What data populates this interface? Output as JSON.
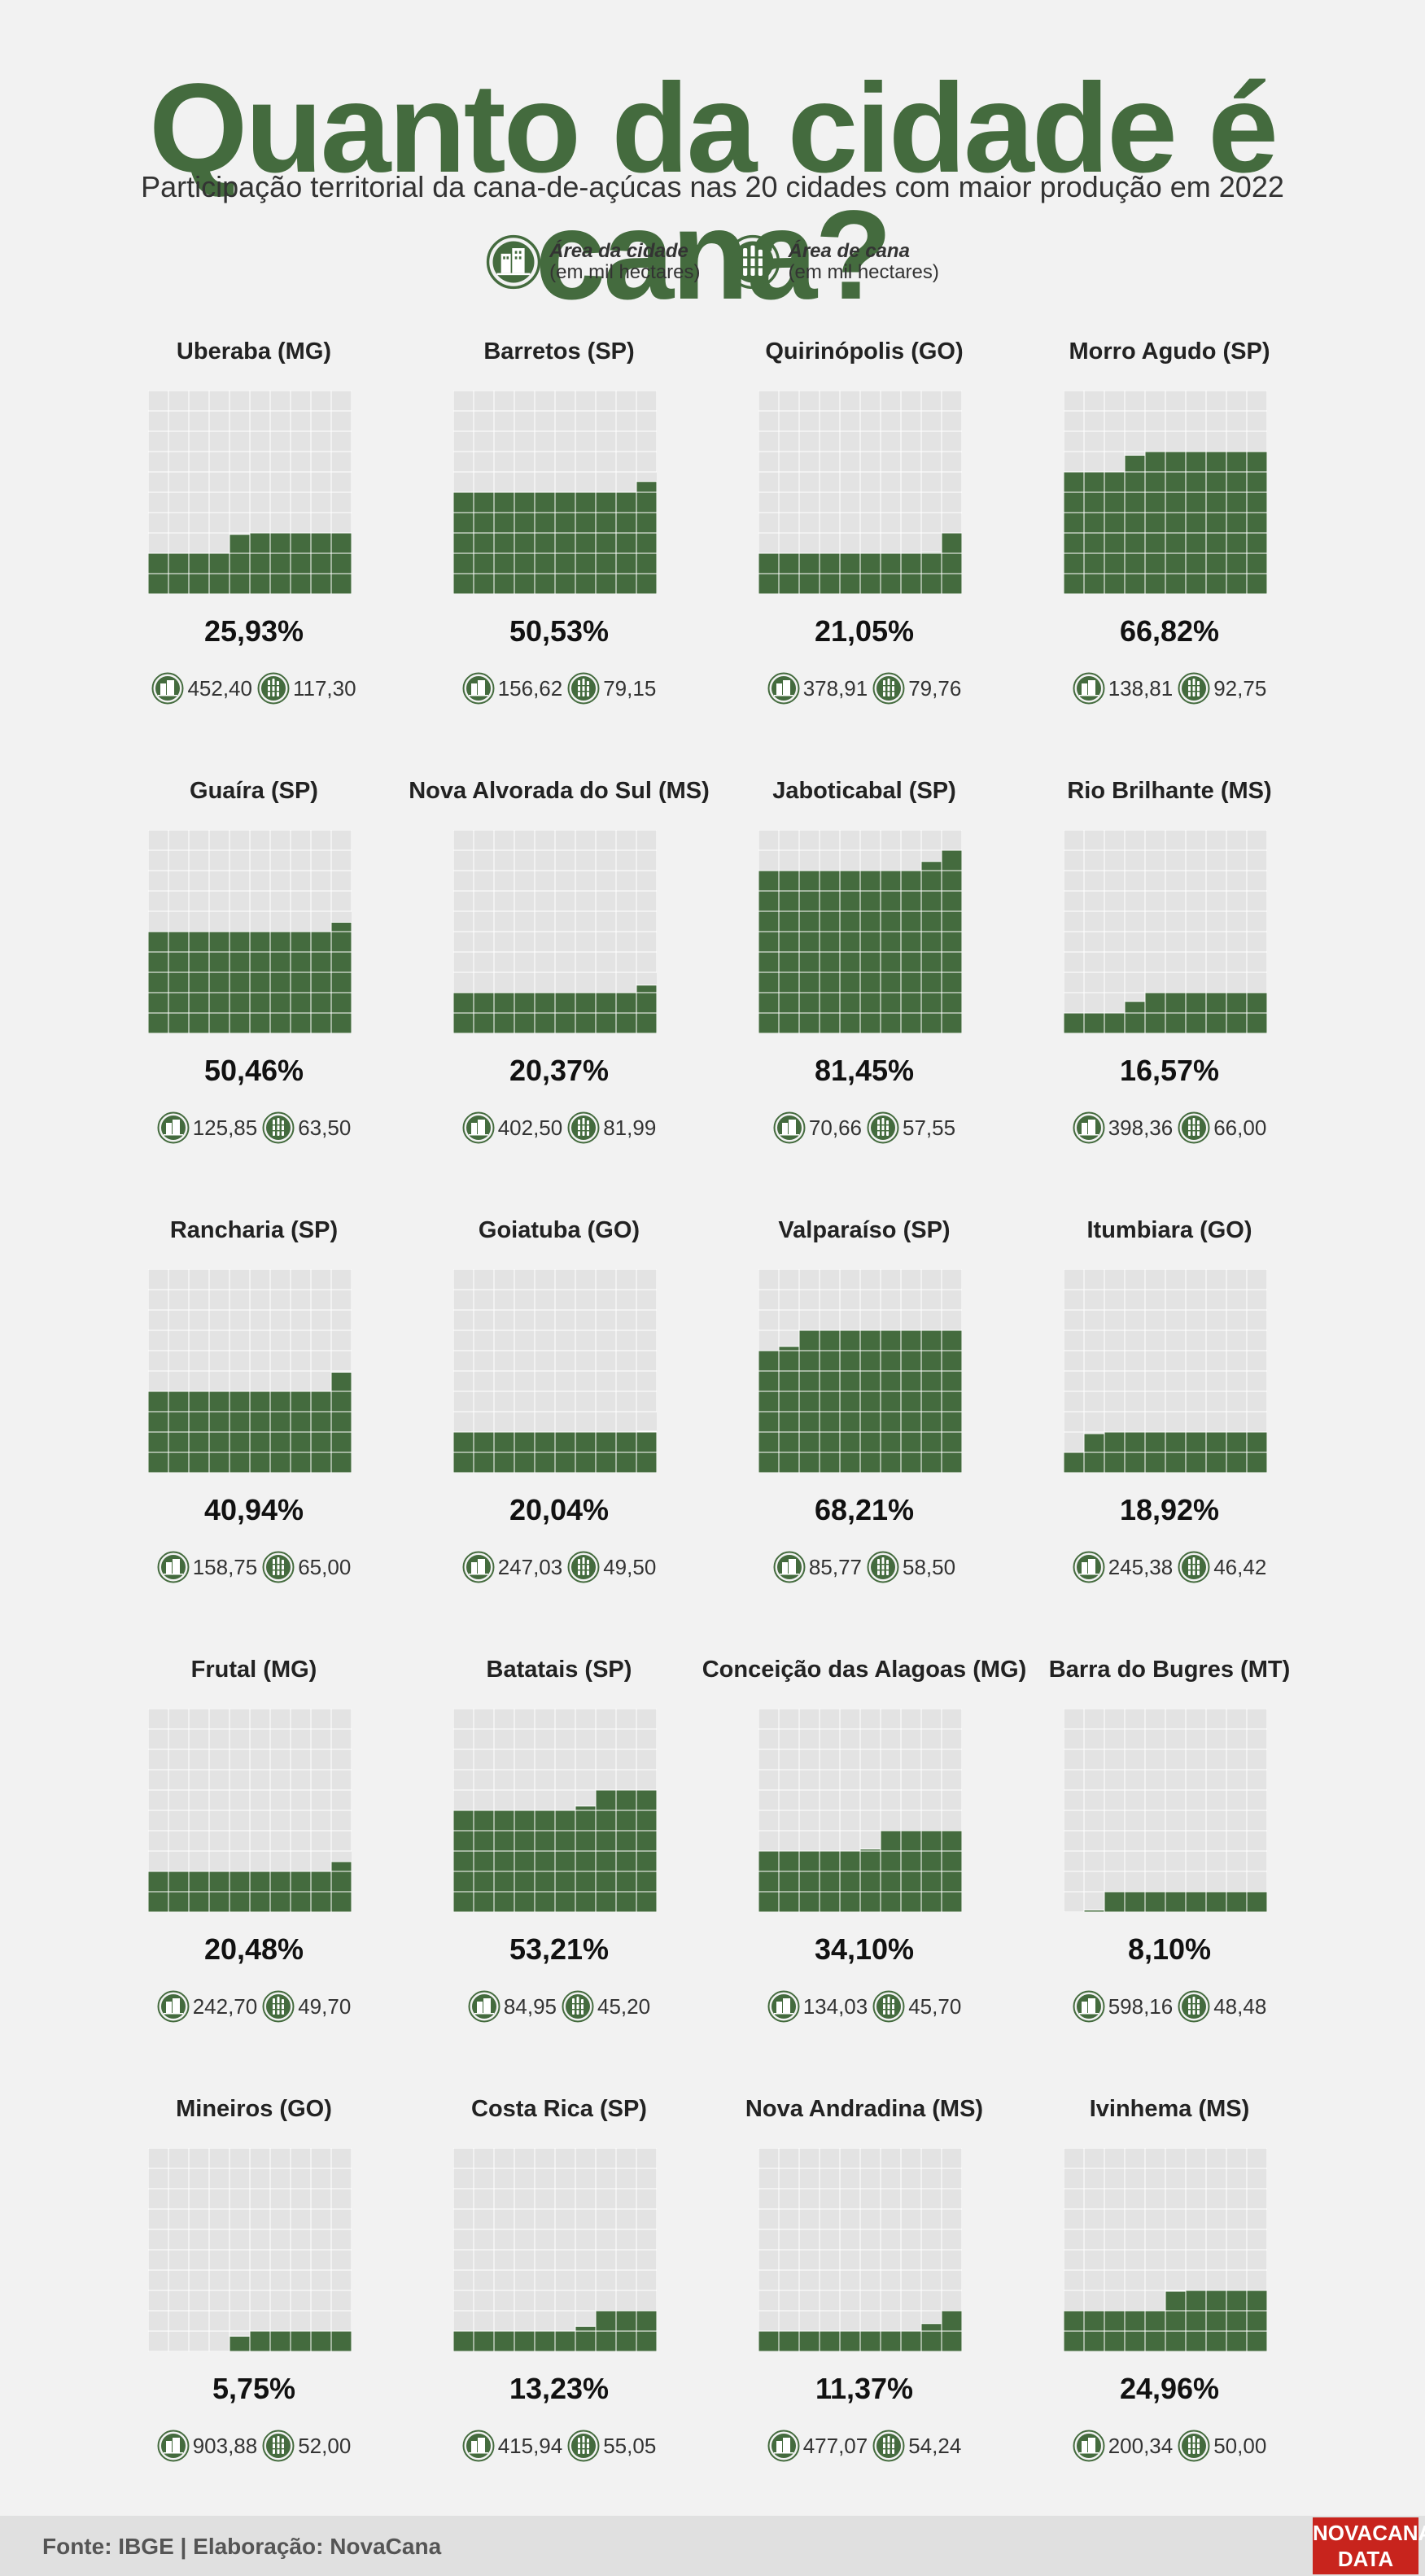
{
  "header": {
    "title": "Quanto da cidade é cana?",
    "subtitle": "Participação territorial da cana-de-açúcas nas 20 cidades com maior produção em 2022"
  },
  "legend": {
    "city_area_title": "Área da cidade",
    "city_area_unit": "(em mil hectares)",
    "cane_area_title": "Área de cana",
    "cane_area_unit": "(em mil hectares)",
    "city_icon": "city-building-icon",
    "cane_icon": "sugarcane-icon"
  },
  "colors": {
    "accent": "#446b3e",
    "grid_bg": "#e3e3e3",
    "logo_red": "#c8241d"
  },
  "chart_data": {
    "type": "waffle",
    "grid": "10x10",
    "unit": "mil hectares",
    "cities": [
      {
        "name": "Uberaba (MG)",
        "pct": 25.93,
        "pct_label": "25,93%",
        "city_area": "452,40",
        "cane_area": "117,30"
      },
      {
        "name": "Barretos (SP)",
        "pct": 50.53,
        "pct_label": "50,53%",
        "city_area": "156,62",
        "cane_area": "79,15"
      },
      {
        "name": "Quirinópolis (GO)",
        "pct": 21.05,
        "pct_label": "21,05%",
        "city_area": "378,91",
        "cane_area": "79,76"
      },
      {
        "name": "Morro Agudo (SP)",
        "pct": 66.82,
        "pct_label": "66,82%",
        "city_area": "138,81",
        "cane_area": "92,75"
      },
      {
        "name": "Guaíra (SP)",
        "pct": 50.46,
        "pct_label": "50,46%",
        "city_area": "125,85",
        "cane_area": "63,50"
      },
      {
        "name": "Nova Alvorada do Sul (MS)",
        "pct": 20.37,
        "pct_label": "20,37%",
        "city_area": "402,50",
        "cane_area": "81,99"
      },
      {
        "name": "Jaboticabal (SP)",
        "pct": 81.45,
        "pct_label": "81,45%",
        "city_area": "70,66",
        "cane_area": "57,55"
      },
      {
        "name": "Rio Brilhante (MS)",
        "pct": 16.57,
        "pct_label": "16,57%",
        "city_area": "398,36",
        "cane_area": "66,00"
      },
      {
        "name": "Rancharia (SP)",
        "pct": 40.94,
        "pct_label": "40,94%",
        "city_area": "158,75",
        "cane_area": "65,00"
      },
      {
        "name": "Goiatuba (GO)",
        "pct": 20.04,
        "pct_label": "20,04%",
        "city_area": "247,03",
        "cane_area": "49,50"
      },
      {
        "name": "Valparaíso (SP)",
        "pct": 68.21,
        "pct_label": "68,21%",
        "city_area": "85,77",
        "cane_area": "58,50"
      },
      {
        "name": "Itumbiara (GO)",
        "pct": 18.92,
        "pct_label": "18,92%",
        "city_area": "245,38",
        "cane_area": "46,42"
      },
      {
        "name": "Frutal (MG)",
        "pct": 20.48,
        "pct_label": "20,48%",
        "city_area": "242,70",
        "cane_area": "49,70"
      },
      {
        "name": "Batatais (SP)",
        "pct": 53.21,
        "pct_label": "53,21%",
        "city_area": "84,95",
        "cane_area": "45,20"
      },
      {
        "name": "Conceição das Alagoas (MG)",
        "pct": 34.1,
        "pct_label": "34,10%",
        "city_area": "134,03",
        "cane_area": "45,70"
      },
      {
        "name": "Barra do Bugres (MT)",
        "pct": 8.1,
        "pct_label": "8,10%",
        "city_area": "598,16",
        "cane_area": "48,48"
      },
      {
        "name": "Mineiros (GO)",
        "pct": 5.75,
        "pct_label": "5,75%",
        "city_area": "903,88",
        "cane_area": "52,00"
      },
      {
        "name": "Costa Rica (SP)",
        "pct": 13.23,
        "pct_label": "13,23%",
        "city_area": "415,94",
        "cane_area": "55,05"
      },
      {
        "name": "Nova Andradina (MS)",
        "pct": 11.37,
        "pct_label": "11,37%",
        "city_area": "477,07",
        "cane_area": "54,24"
      },
      {
        "name": "Ivinhema (MS)",
        "pct": 24.96,
        "pct_label": "24,96%",
        "city_area": "200,34",
        "cane_area": "50,00"
      }
    ]
  },
  "footer": {
    "source": "Fonte: IBGE | Elaboração: NovaCana",
    "logo_line1": "NOVACANA",
    "logo_line2": "DATA"
  }
}
